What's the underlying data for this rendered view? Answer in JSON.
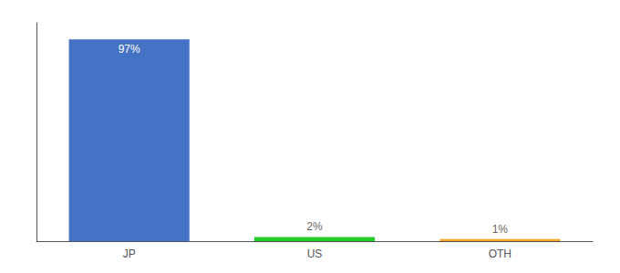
{
  "chart_data": {
    "type": "bar",
    "categories": [
      "JP",
      "US",
      "OTH"
    ],
    "values": [
      97,
      2,
      1
    ],
    "value_labels": [
      "97%",
      "2%",
      "1%"
    ],
    "colors": [
      "#4472c4",
      "#22cc22",
      "#f5a623"
    ],
    "ylim": [
      0,
      105
    ],
    "data_labels": true,
    "tick_labels": "x",
    "grid": false
  }
}
